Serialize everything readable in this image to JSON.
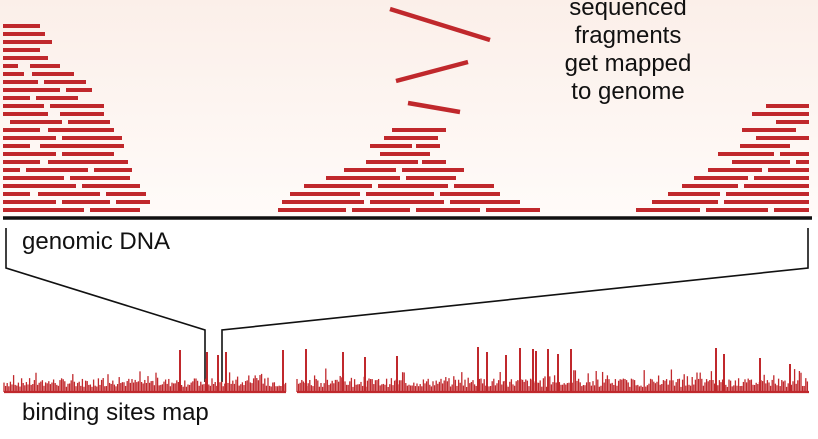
{
  "colors": {
    "fragment": "#c0282c",
    "dna": "#111111",
    "text": "#111111",
    "panel_background": "#fbefe9"
  },
  "labels": {
    "annotation_lines": [
      "sequenced",
      "fragments",
      "get mapped",
      "to genome"
    ],
    "genomic_dna": "genomic DNA",
    "binding_sites_map": "binding sites map"
  }
}
